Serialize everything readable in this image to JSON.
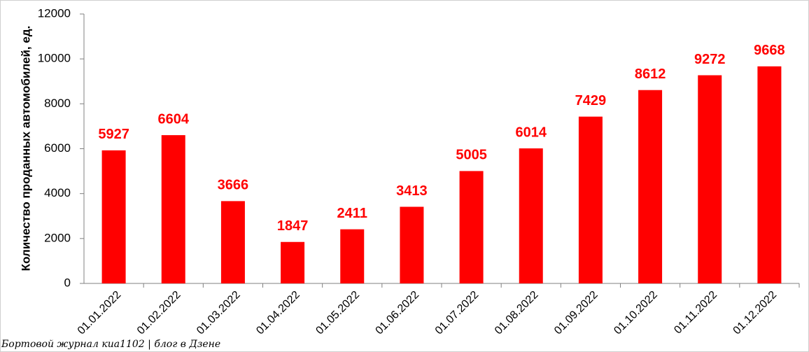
{
  "chart_data": {
    "type": "bar",
    "y_label": "Количество проданных  автомобилей, ед.",
    "categories": [
      "01.01.2022",
      "01.02.2022",
      "01.03.2022",
      "01.04.2022",
      "01.05.2022",
      "01.06.2022",
      "01.07.2022",
      "01.08.2022",
      "01.09.2022",
      "01.10.2022",
      "01.11.2022",
      "01.12.2022"
    ],
    "values": [
      5927,
      6604,
      3666,
      1847,
      2411,
      3413,
      5005,
      6014,
      7429,
      8612,
      9272,
      9668
    ],
    "color": "#ff0000",
    "ylim": [
      0,
      12000
    ],
    "yticks": [
      0,
      2000,
      4000,
      6000,
      8000,
      10000,
      12000
    ],
    "grid": false,
    "watermark": "Бортовой журнал киа1102 | блог в Дзене"
  }
}
